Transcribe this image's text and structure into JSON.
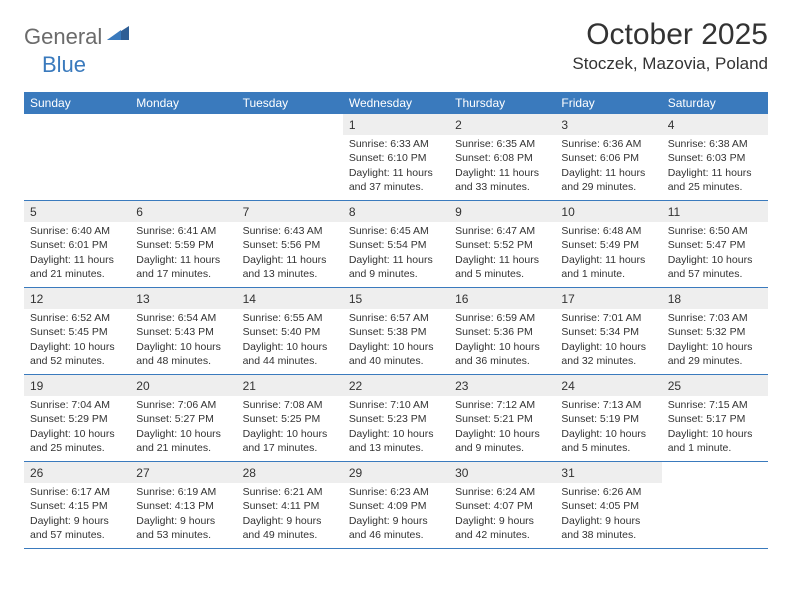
{
  "logo": {
    "part1": "General",
    "part2": "Blue"
  },
  "title": "October 2025",
  "location": "Stoczek, Mazovia, Poland",
  "colors": {
    "header_bg": "#3a7abd",
    "daynum_bg": "#eeeeee",
    "text": "#333333",
    "logo_gray": "#6b6b6b",
    "logo_blue": "#3a7abd",
    "page_bg": "#ffffff"
  },
  "day_names": [
    "Sunday",
    "Monday",
    "Tuesday",
    "Wednesday",
    "Thursday",
    "Friday",
    "Saturday"
  ],
  "weeks": [
    [
      {
        "n": "",
        "sr": "",
        "ss": "",
        "dl": ""
      },
      {
        "n": "",
        "sr": "",
        "ss": "",
        "dl": ""
      },
      {
        "n": "",
        "sr": "",
        "ss": "",
        "dl": ""
      },
      {
        "n": "1",
        "sr": "Sunrise: 6:33 AM",
        "ss": "Sunset: 6:10 PM",
        "dl": "Daylight: 11 hours and 37 minutes."
      },
      {
        "n": "2",
        "sr": "Sunrise: 6:35 AM",
        "ss": "Sunset: 6:08 PM",
        "dl": "Daylight: 11 hours and 33 minutes."
      },
      {
        "n": "3",
        "sr": "Sunrise: 6:36 AM",
        "ss": "Sunset: 6:06 PM",
        "dl": "Daylight: 11 hours and 29 minutes."
      },
      {
        "n": "4",
        "sr": "Sunrise: 6:38 AM",
        "ss": "Sunset: 6:03 PM",
        "dl": "Daylight: 11 hours and 25 minutes."
      }
    ],
    [
      {
        "n": "5",
        "sr": "Sunrise: 6:40 AM",
        "ss": "Sunset: 6:01 PM",
        "dl": "Daylight: 11 hours and 21 minutes."
      },
      {
        "n": "6",
        "sr": "Sunrise: 6:41 AM",
        "ss": "Sunset: 5:59 PM",
        "dl": "Daylight: 11 hours and 17 minutes."
      },
      {
        "n": "7",
        "sr": "Sunrise: 6:43 AM",
        "ss": "Sunset: 5:56 PM",
        "dl": "Daylight: 11 hours and 13 minutes."
      },
      {
        "n": "8",
        "sr": "Sunrise: 6:45 AM",
        "ss": "Sunset: 5:54 PM",
        "dl": "Daylight: 11 hours and 9 minutes."
      },
      {
        "n": "9",
        "sr": "Sunrise: 6:47 AM",
        "ss": "Sunset: 5:52 PM",
        "dl": "Daylight: 11 hours and 5 minutes."
      },
      {
        "n": "10",
        "sr": "Sunrise: 6:48 AM",
        "ss": "Sunset: 5:49 PM",
        "dl": "Daylight: 11 hours and 1 minute."
      },
      {
        "n": "11",
        "sr": "Sunrise: 6:50 AM",
        "ss": "Sunset: 5:47 PM",
        "dl": "Daylight: 10 hours and 57 minutes."
      }
    ],
    [
      {
        "n": "12",
        "sr": "Sunrise: 6:52 AM",
        "ss": "Sunset: 5:45 PM",
        "dl": "Daylight: 10 hours and 52 minutes."
      },
      {
        "n": "13",
        "sr": "Sunrise: 6:54 AM",
        "ss": "Sunset: 5:43 PM",
        "dl": "Daylight: 10 hours and 48 minutes."
      },
      {
        "n": "14",
        "sr": "Sunrise: 6:55 AM",
        "ss": "Sunset: 5:40 PM",
        "dl": "Daylight: 10 hours and 44 minutes."
      },
      {
        "n": "15",
        "sr": "Sunrise: 6:57 AM",
        "ss": "Sunset: 5:38 PM",
        "dl": "Daylight: 10 hours and 40 minutes."
      },
      {
        "n": "16",
        "sr": "Sunrise: 6:59 AM",
        "ss": "Sunset: 5:36 PM",
        "dl": "Daylight: 10 hours and 36 minutes."
      },
      {
        "n": "17",
        "sr": "Sunrise: 7:01 AM",
        "ss": "Sunset: 5:34 PM",
        "dl": "Daylight: 10 hours and 32 minutes."
      },
      {
        "n": "18",
        "sr": "Sunrise: 7:03 AM",
        "ss": "Sunset: 5:32 PM",
        "dl": "Daylight: 10 hours and 29 minutes."
      }
    ],
    [
      {
        "n": "19",
        "sr": "Sunrise: 7:04 AM",
        "ss": "Sunset: 5:29 PM",
        "dl": "Daylight: 10 hours and 25 minutes."
      },
      {
        "n": "20",
        "sr": "Sunrise: 7:06 AM",
        "ss": "Sunset: 5:27 PM",
        "dl": "Daylight: 10 hours and 21 minutes."
      },
      {
        "n": "21",
        "sr": "Sunrise: 7:08 AM",
        "ss": "Sunset: 5:25 PM",
        "dl": "Daylight: 10 hours and 17 minutes."
      },
      {
        "n": "22",
        "sr": "Sunrise: 7:10 AM",
        "ss": "Sunset: 5:23 PM",
        "dl": "Daylight: 10 hours and 13 minutes."
      },
      {
        "n": "23",
        "sr": "Sunrise: 7:12 AM",
        "ss": "Sunset: 5:21 PM",
        "dl": "Daylight: 10 hours and 9 minutes."
      },
      {
        "n": "24",
        "sr": "Sunrise: 7:13 AM",
        "ss": "Sunset: 5:19 PM",
        "dl": "Daylight: 10 hours and 5 minutes."
      },
      {
        "n": "25",
        "sr": "Sunrise: 7:15 AM",
        "ss": "Sunset: 5:17 PM",
        "dl": "Daylight: 10 hours and 1 minute."
      }
    ],
    [
      {
        "n": "26",
        "sr": "Sunrise: 6:17 AM",
        "ss": "Sunset: 4:15 PM",
        "dl": "Daylight: 9 hours and 57 minutes."
      },
      {
        "n": "27",
        "sr": "Sunrise: 6:19 AM",
        "ss": "Sunset: 4:13 PM",
        "dl": "Daylight: 9 hours and 53 minutes."
      },
      {
        "n": "28",
        "sr": "Sunrise: 6:21 AM",
        "ss": "Sunset: 4:11 PM",
        "dl": "Daylight: 9 hours and 49 minutes."
      },
      {
        "n": "29",
        "sr": "Sunrise: 6:23 AM",
        "ss": "Sunset: 4:09 PM",
        "dl": "Daylight: 9 hours and 46 minutes."
      },
      {
        "n": "30",
        "sr": "Sunrise: 6:24 AM",
        "ss": "Sunset: 4:07 PM",
        "dl": "Daylight: 9 hours and 42 minutes."
      },
      {
        "n": "31",
        "sr": "Sunrise: 6:26 AM",
        "ss": "Sunset: 4:05 PM",
        "dl": "Daylight: 9 hours and 38 minutes."
      },
      {
        "n": "",
        "sr": "",
        "ss": "",
        "dl": ""
      }
    ]
  ]
}
